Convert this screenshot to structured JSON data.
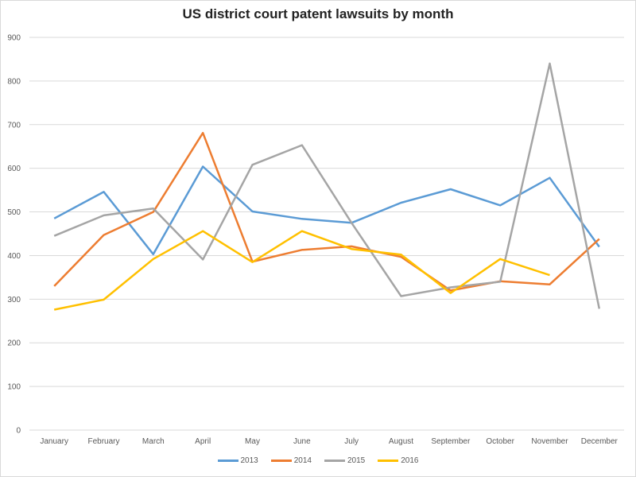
{
  "chart_data": {
    "type": "line",
    "title": "US district court patent lawsuits by month",
    "xlabel": "",
    "ylabel": "",
    "ylim": [
      0,
      900
    ],
    "yticks": [
      0,
      100,
      200,
      300,
      400,
      500,
      600,
      700,
      800,
      900
    ],
    "grid": true,
    "legend_position": "bottom",
    "categories": [
      "January",
      "February",
      "March",
      "April",
      "May",
      "June",
      "July",
      "August",
      "September",
      "October",
      "November",
      "December"
    ],
    "series": [
      {
        "name": "2013",
        "color": "#5b9bd5",
        "values": [
          485,
          546,
          403,
          604,
          501,
          484,
          475,
          521,
          552,
          515,
          578,
          420
        ]
      },
      {
        "name": "2014",
        "color": "#ed7d31",
        "values": [
          330,
          447,
          500,
          681,
          386,
          413,
          421,
          397,
          320,
          341,
          334,
          438
        ]
      },
      {
        "name": "2015",
        "color": "#a5a5a5",
        "values": [
          445,
          492,
          508,
          391,
          608,
          653,
          475,
          307,
          327,
          340,
          840,
          278
        ]
      },
      {
        "name": "2016",
        "color": "#ffc000",
        "values": [
          276,
          299,
          392,
          456,
          385,
          456,
          415,
          402,
          314,
          392,
          355,
          null
        ]
      }
    ]
  }
}
